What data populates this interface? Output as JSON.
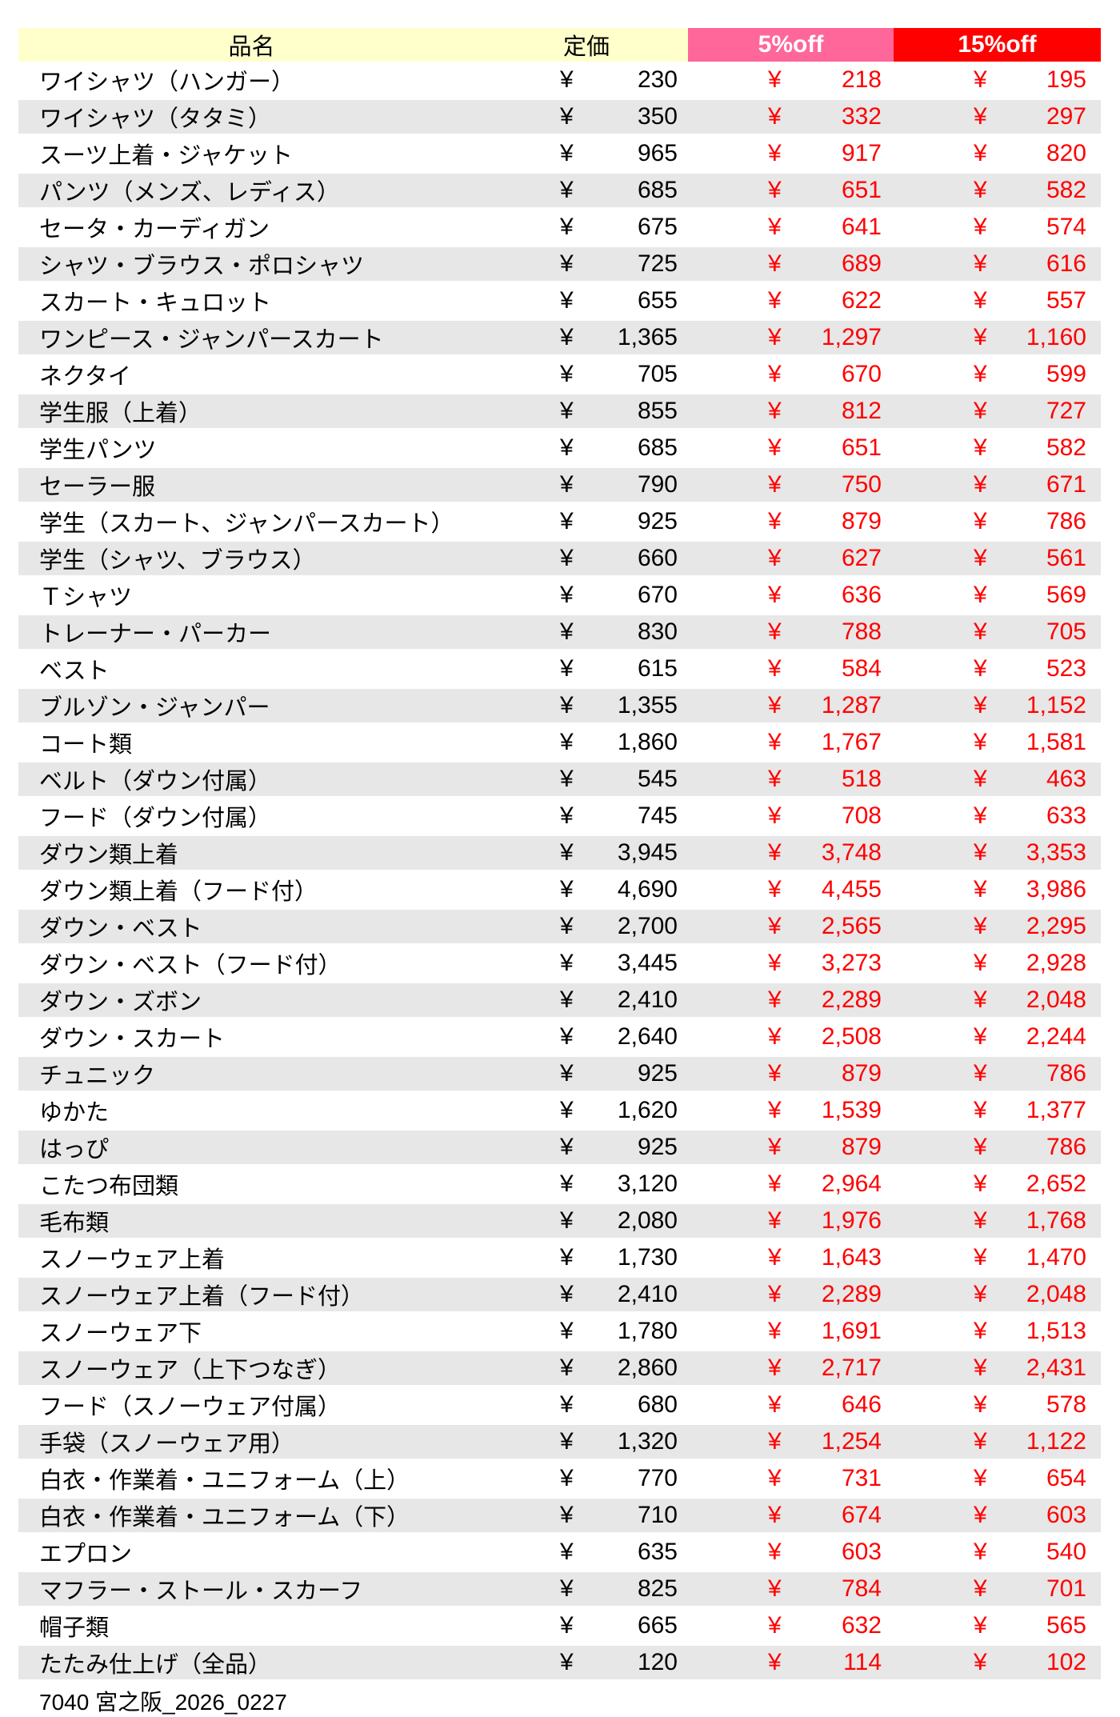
{
  "table": {
    "headers": {
      "item": "品名",
      "list_price": "定価",
      "off5": "5%off",
      "off15": "15%off"
    },
    "currency_symbol": "¥",
    "rows": [
      {
        "item": "ワイシャツ（ハンガー）",
        "list": "230",
        "off5": "218",
        "off15": "195"
      },
      {
        "item": "ワイシャツ（タタミ）",
        "list": "350",
        "off5": "332",
        "off15": "297"
      },
      {
        "item": "スーツ上着・ジャケット",
        "list": "965",
        "off5": "917",
        "off15": "820"
      },
      {
        "item": "パンツ（メンズ、レディス）",
        "list": "685",
        "off5": "651",
        "off15": "582"
      },
      {
        "item": "セータ・カーディガン",
        "list": "675",
        "off5": "641",
        "off15": "574"
      },
      {
        "item": "シャツ・ブラウス・ポロシャツ",
        "list": "725",
        "off5": "689",
        "off15": "616"
      },
      {
        "item": "スカート・キュロット",
        "list": "655",
        "off5": "622",
        "off15": "557"
      },
      {
        "item": "ワンピース・ジャンパースカート",
        "list": "1,365",
        "off5": "1,297",
        "off15": "1,160"
      },
      {
        "item": "ネクタイ",
        "list": "705",
        "off5": "670",
        "off15": "599"
      },
      {
        "item": "学生服（上着）",
        "list": "855",
        "off5": "812",
        "off15": "727"
      },
      {
        "item": "学生パンツ",
        "list": "685",
        "off5": "651",
        "off15": "582"
      },
      {
        "item": "セーラー服",
        "list": "790",
        "off5": "750",
        "off15": "671"
      },
      {
        "item": "学生（スカート、ジャンパースカート）",
        "list": "925",
        "off5": "879",
        "off15": "786"
      },
      {
        "item": "学生（シャツ、ブラウス）",
        "list": "660",
        "off5": "627",
        "off15": "561"
      },
      {
        "item": "Ｔシャツ",
        "list": "670",
        "off5": "636",
        "off15": "569"
      },
      {
        "item": "トレーナー・パーカー",
        "list": "830",
        "off5": "788",
        "off15": "705"
      },
      {
        "item": "ベスト",
        "list": "615",
        "off5": "584",
        "off15": "523"
      },
      {
        "item": "ブルゾン・ジャンパー",
        "list": "1,355",
        "off5": "1,287",
        "off15": "1,152"
      },
      {
        "item": "コート類",
        "list": "1,860",
        "off5": "1,767",
        "off15": "1,581"
      },
      {
        "item": "ベルト（ダウン付属）",
        "list": "545",
        "off5": "518",
        "off15": "463"
      },
      {
        "item": "フード（ダウン付属）",
        "list": "745",
        "off5": "708",
        "off15": "633"
      },
      {
        "item": "ダウン類上着",
        "list": "3,945",
        "off5": "3,748",
        "off15": "3,353"
      },
      {
        "item": "ダウン類上着（フード付）",
        "list": "4,690",
        "off5": "4,455",
        "off15": "3,986"
      },
      {
        "item": "ダウン・ベスト",
        "list": "2,700",
        "off5": "2,565",
        "off15": "2,295"
      },
      {
        "item": "ダウン・ベスト（フード付）",
        "list": "3,445",
        "off5": "3,273",
        "off15": "2,928"
      },
      {
        "item": "ダウン・ズボン",
        "list": "2,410",
        "off5": "2,289",
        "off15": "2,048"
      },
      {
        "item": "ダウン・スカート",
        "list": "2,640",
        "off5": "2,508",
        "off15": "2,244"
      },
      {
        "item": "チュニック",
        "list": "925",
        "off5": "879",
        "off15": "786"
      },
      {
        "item": "ゆかた",
        "list": "1,620",
        "off5": "1,539",
        "off15": "1,377"
      },
      {
        "item": "はっぴ",
        "list": "925",
        "off5": "879",
        "off15": "786"
      },
      {
        "item": "こたつ布団類",
        "list": "3,120",
        "off5": "2,964",
        "off15": "2,652"
      },
      {
        "item": "毛布類",
        "list": "2,080",
        "off5": "1,976",
        "off15": "1,768"
      },
      {
        "item": "スノーウェア上着",
        "list": "1,730",
        "off5": "1,643",
        "off15": "1,470"
      },
      {
        "item": "スノーウェア上着（フード付）",
        "list": "2,410",
        "off5": "2,289",
        "off15": "2,048"
      },
      {
        "item": "スノーウェア下",
        "list": "1,780",
        "off5": "1,691",
        "off15": "1,513"
      },
      {
        "item": "スノーウェア（上下つなぎ）",
        "list": "2,860",
        "off5": "2,717",
        "off15": "2,431"
      },
      {
        "item": "フード（スノーウェア付属）",
        "list": "680",
        "off5": "646",
        "off15": "578"
      },
      {
        "item": "手袋（スノーウェア用）",
        "list": "1,320",
        "off5": "1,254",
        "off15": "1,122"
      },
      {
        "item": "白衣・作業着・ユニフォーム（上）",
        "list": "770",
        "off5": "731",
        "off15": "654"
      },
      {
        "item": "白衣・作業着・ユニフォーム（下）",
        "list": "710",
        "off5": "674",
        "off15": "603"
      },
      {
        "item": "エプロン",
        "list": "635",
        "off5": "603",
        "off15": "540"
      },
      {
        "item": "マフラー・ストール・スカーフ",
        "list": "825",
        "off5": "784",
        "off15": "701"
      },
      {
        "item": "帽子類",
        "list": "665",
        "off5": "632",
        "off15": "565"
      },
      {
        "item": "たたみ仕上げ（全品）",
        "list": "120",
        "off5": "114",
        "off15": "102"
      }
    ]
  },
  "footer": "7040 宮之阪_2026_0227",
  "colors": {
    "header_yellow": "#FFFFCC",
    "header_pink": "#FF6699",
    "header_red": "#FF0000",
    "stripe_gray": "#E7E7E7",
    "discount_text_red": "#FF0000",
    "text_black": "#000000"
  }
}
